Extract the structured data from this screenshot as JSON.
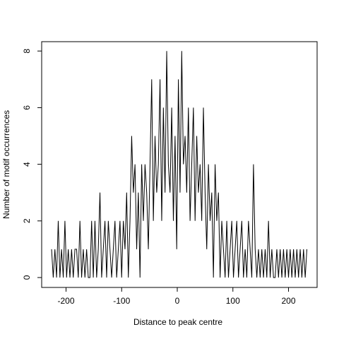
{
  "chart_data": {
    "type": "line",
    "xlabel": "Distance to peak centre",
    "ylabel": "Number of motif occurrences",
    "color": "#000000",
    "xlim": [
      -243.8,
      251.4
    ],
    "ylim": [
      -0.35,
      8.33
    ],
    "xticks": [
      -200,
      -100,
      0,
      100,
      200
    ],
    "yticks": [
      0,
      2,
      4,
      6,
      8
    ],
    "x": [
      -226,
      -223,
      -220,
      -217,
      -214,
      -211,
      -208,
      -205,
      -202,
      -199,
      -196,
      -193,
      -190,
      -187,
      -184,
      -181,
      -178,
      -175,
      -172,
      -169,
      -166,
      -163,
      -160,
      -157,
      -154,
      -151,
      -148,
      -145,
      -142,
      -139,
      -136,
      -133,
      -130,
      -127,
      -124,
      -121,
      -118,
      -115,
      -112,
      -109,
      -106,
      -103,
      -100,
      -97,
      -94,
      -91,
      -88,
      -85,
      -82,
      -79,
      -76,
      -73,
      -70,
      -67,
      -64,
      -61,
      -58,
      -55,
      -52,
      -49,
      -46,
      -43,
      -40,
      -37,
      -34,
      -31,
      -28,
      -25,
      -22,
      -19,
      -16,
      -13,
      -10,
      -7,
      -4,
      -1,
      2,
      5,
      8,
      11,
      14,
      17,
      20,
      23,
      26,
      29,
      32,
      35,
      38,
      41,
      44,
      47,
      50,
      53,
      56,
      59,
      62,
      65,
      68,
      71,
      74,
      77,
      80,
      83,
      86,
      89,
      92,
      95,
      98,
      101,
      104,
      107,
      110,
      113,
      116,
      119,
      122,
      125,
      128,
      131,
      134,
      137,
      140,
      143,
      146,
      149,
      152,
      155,
      158,
      161,
      164,
      167,
      170,
      173,
      176,
      179,
      182,
      185,
      188,
      191,
      194,
      197,
      200,
      203,
      206,
      209,
      212,
      215,
      218,
      221,
      224,
      227,
      230,
      233
    ],
    "values": [
      1,
      0,
      1,
      0,
      2,
      0,
      1,
      0,
      2,
      0,
      1,
      0,
      1,
      0,
      1,
      1,
      0,
      2,
      0,
      1,
      0,
      1,
      0,
      0,
      2,
      0,
      2,
      0,
      1,
      3,
      0,
      1,
      2,
      0,
      2,
      1,
      0,
      1,
      2,
      0,
      1,
      2,
      0,
      2,
      1,
      3,
      0,
      2,
      5,
      3,
      4,
      1,
      3,
      0,
      4,
      2,
      4,
      3,
      1,
      4,
      7,
      2,
      5,
      3,
      4,
      7,
      2,
      6,
      3,
      8,
      4,
      3,
      6,
      2,
      5,
      1,
      7,
      3,
      8,
      4,
      5,
      3,
      6,
      2,
      4,
      6,
      2,
      5,
      3,
      4,
      2,
      6,
      3,
      1,
      4,
      2,
      3,
      0,
      4,
      2,
      3,
      0,
      2,
      1,
      0,
      2,
      0,
      1,
      2,
      0,
      1,
      2,
      0,
      1,
      2,
      0,
      1,
      0,
      2,
      1,
      0,
      4,
      1,
      0,
      1,
      0,
      1,
      0,
      1,
      0,
      2,
      0,
      1,
      0,
      0,
      1,
      0,
      1,
      0,
      1,
      0,
      1,
      0,
      1,
      0,
      1,
      0,
      1,
      0,
      1,
      0,
      1,
      0,
      1
    ]
  }
}
